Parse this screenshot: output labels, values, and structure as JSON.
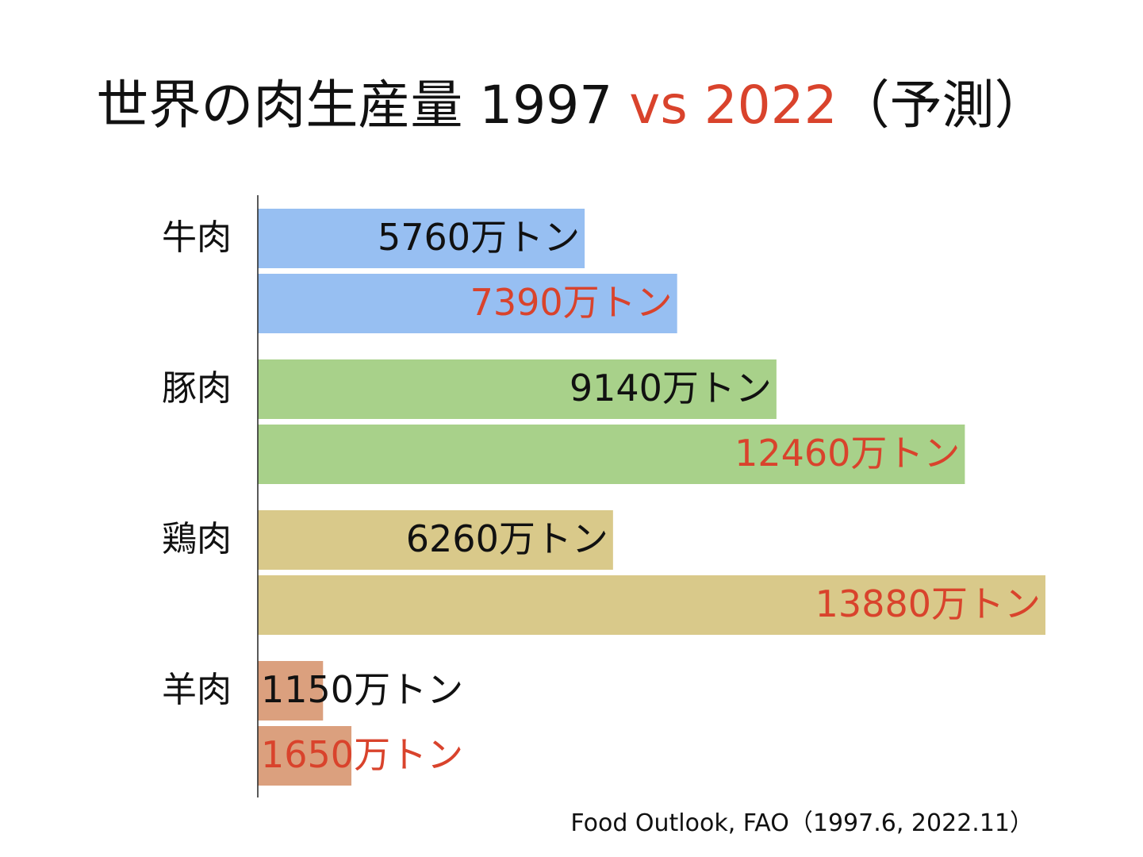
{
  "title": {
    "main": "世界の肉生産量 1997",
    "accent": "vs 2022",
    "suffix": "（予測）"
  },
  "colors": {
    "label_1997": "#111111",
    "label_2022": "#d9432c",
    "axis": "#222222"
  },
  "chart_data": {
    "type": "bar",
    "orientation": "horizontal",
    "categories": [
      "牛肉",
      "豚肉",
      "鶏肉",
      "羊肉"
    ],
    "category_colors": [
      "#97bff2",
      "#a8d18a",
      "#d9c98a",
      "#dba07e"
    ],
    "series": [
      {
        "values": [
          5760,
          9140,
          6260,
          1150
        ],
        "labels": [
          "5760万トン",
          "9140万トン",
          "6260万トン",
          "1150万トン"
        ]
      },
      {
        "values": [
          7390,
          12460,
          13880,
          1650
        ],
        "labels": [
          "7390万トン",
          "12460万トン",
          "13880万トン",
          "1650万トン"
        ]
      }
    ],
    "unit": "万トン",
    "xlim": [
      0,
      13880
    ],
    "grid": false,
    "legend": "none"
  },
  "source": "Food Outlook, FAO（1997.6, 2022.11）"
}
